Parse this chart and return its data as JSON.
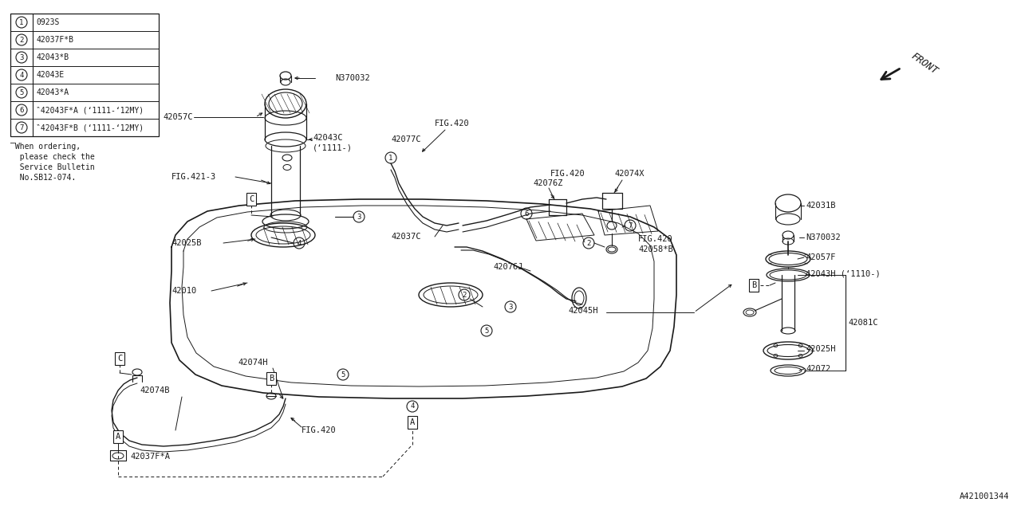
{
  "bg_color": "#ffffff",
  "line_color": "#1a1a1a",
  "diagram_id": "A421001344",
  "legend_items": [
    {
      "num": "1",
      "code": "0923S"
    },
    {
      "num": "2",
      "code": "42037F*B"
    },
    {
      "num": "3",
      "code": "42043*B"
    },
    {
      "num": "4",
      "code": "42043E"
    },
    {
      "num": "5",
      "code": "42043*A"
    },
    {
      "num": "6",
      "code": "‶42043F*A (‘1111-‘12MY)"
    },
    {
      "num": "7",
      "code": "‶42043F*B (‘1111-‘12MY)"
    }
  ],
  "note_lines": [
    "‾When ordering,",
    "  please check the",
    "  Service Bulletin",
    "  No.SB12-074."
  ]
}
